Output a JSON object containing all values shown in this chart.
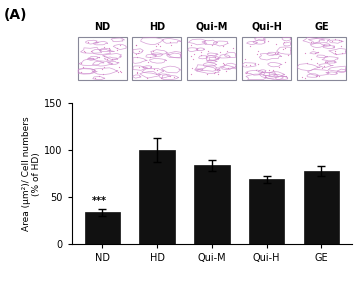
{
  "categories": [
    "ND",
    "HD",
    "Qui-M",
    "Qui-H",
    "GE"
  ],
  "values": [
    34,
    100,
    84,
    69,
    78
  ],
  "errors": [
    4,
    13,
    6,
    4,
    5
  ],
  "bar_color": "#111111",
  "bar_width": 0.65,
  "ylim": [
    0,
    150
  ],
  "yticks": [
    0,
    50,
    100,
    150
  ],
  "ylabel": "Area (μm²)/ Cell numbers\n(% of HD)",
  "significance_text": "***",
  "panel_label": "(A)",
  "image_labels": [
    "ND",
    "HD",
    "Qui-M",
    "Qui-H",
    "GE"
  ],
  "image_bg_color": "#ffffff",
  "image_border_color": "#888899",
  "cell_line_color": "#cc88cc",
  "cell_dot_color": "#cc55aa",
  "label_fontsize": 7,
  "tick_fontsize": 7,
  "ylabel_fontsize": 6.5,
  "panel_fontsize": 10
}
